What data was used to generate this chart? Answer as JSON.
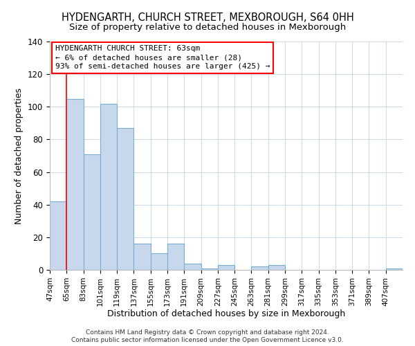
{
  "title": "HYDENGARTH, CHURCH STREET, MEXBOROUGH, S64 0HH",
  "subtitle": "Size of property relative to detached houses in Mexborough",
  "xlabel": "Distribution of detached houses by size in Mexborough",
  "ylabel": "Number of detached properties",
  "footer_line1": "Contains HM Land Registry data © Crown copyright and database right 2024.",
  "footer_line2": "Contains public sector information licensed under the Open Government Licence v3.0.",
  "bin_labels": [
    "47sqm",
    "65sqm",
    "83sqm",
    "101sqm",
    "119sqm",
    "137sqm",
    "155sqm",
    "173sqm",
    "191sqm",
    "209sqm",
    "227sqm",
    "245sqm",
    "263sqm",
    "281sqm",
    "299sqm",
    "317sqm",
    "335sqm",
    "353sqm",
    "371sqm",
    "389sqm",
    "407sqm"
  ],
  "bar_values": [
    42,
    105,
    71,
    102,
    87,
    16,
    10,
    16,
    4,
    1,
    3,
    0,
    2,
    3,
    0,
    0,
    0,
    0,
    0,
    0,
    1
  ],
  "bar_color": "#c8d8ec",
  "bar_edge_color": "#7aaccf",
  "ylim": [
    0,
    140
  ],
  "yticks": [
    0,
    20,
    40,
    60,
    80,
    100,
    120,
    140
  ],
  "annotation_box_text": "HYDENGARTH CHURCH STREET: 63sqm\n← 6% of detached houses are smaller (28)\n93% of semi-detached houses are larger (425) →",
  "red_line_bin": 1,
  "background_color": "#ffffff",
  "grid_color": "#ccd8e8",
  "title_fontsize": 10.5,
  "subtitle_fontsize": 9.5,
  "footer_fontsize": 6.5
}
